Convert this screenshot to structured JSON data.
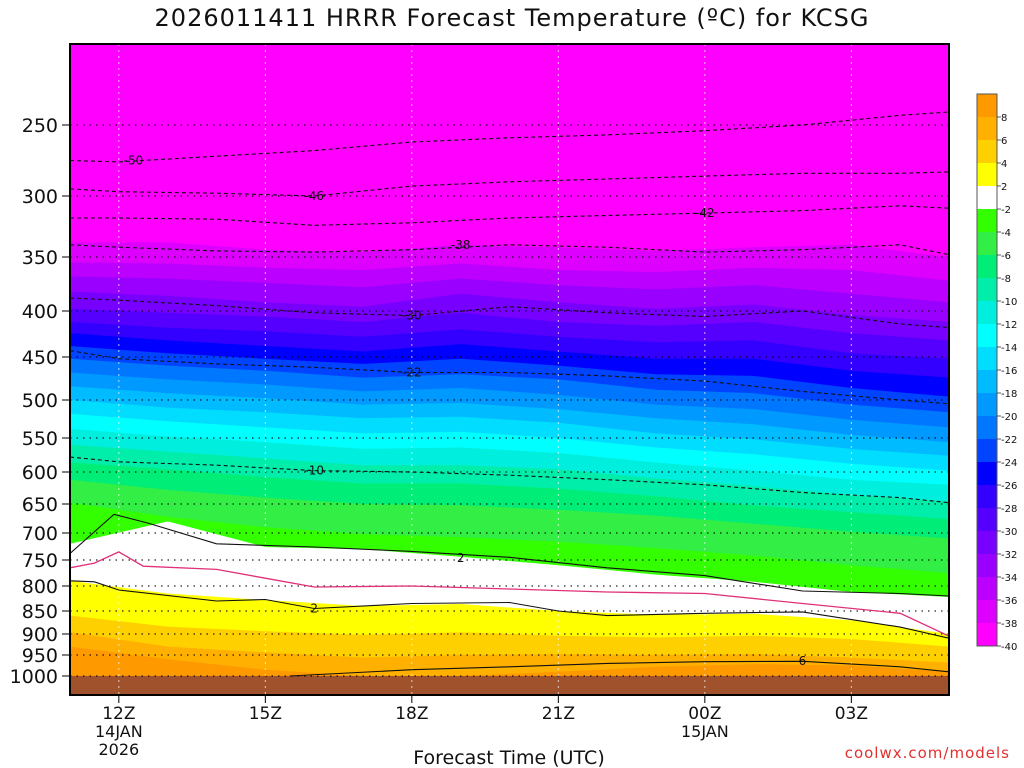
{
  "title": "2026011411 HRRR Forecast Temperature (ºC) for KCSG",
  "credit": "coolwx.com/models",
  "chart_data": {
    "type": "heatmap",
    "title": "2026011411 HRRR Forecast Temperature (ºC) for KCSG",
    "xlabel": "Forecast Time (UTC)",
    "ylabel": "",
    "x_range_hours": [
      -1,
      17
    ],
    "y_pressure_range_hpa": [
      200,
      1020
    ],
    "x_ticks": [
      {
        "hour": 0,
        "label": "12Z",
        "sub1": "14JAN",
        "sub2": "2026"
      },
      {
        "hour": 3,
        "label": "15Z",
        "sub1": "",
        "sub2": ""
      },
      {
        "hour": 6,
        "label": "18Z",
        "sub1": "",
        "sub2": ""
      },
      {
        "hour": 9,
        "label": "21Z",
        "sub1": "",
        "sub2": ""
      },
      {
        "hour": 12,
        "label": "00Z",
        "sub1": "15JAN",
        "sub2": ""
      },
      {
        "hour": 15,
        "label": "03Z",
        "sub1": "",
        "sub2": ""
      }
    ],
    "y_ticks": [
      250,
      300,
      350,
      400,
      450,
      500,
      550,
      600,
      650,
      700,
      750,
      800,
      850,
      900,
      950,
      1000
    ],
    "colorbar_levels": [
      "8",
      "6",
      "4",
      "2",
      "-2",
      "-4",
      "-6",
      "-8",
      "-10",
      "-12",
      "-14",
      "-16",
      "-18",
      "-20",
      "-22",
      "-24",
      "-26",
      "-28",
      "-30",
      "-32",
      "-34",
      "-36",
      "-38",
      "-40"
    ],
    "colorbar_colors": [
      "#ff9900",
      "#ffb000",
      "#ffd000",
      "#ffff00",
      "#ffffff",
      "#33ff00",
      "#33ee44",
      "#00ee77",
      "#00eeaa",
      "#00eedd",
      "#00ffff",
      "#00ddff",
      "#00bbff",
      "#0099ff",
      "#0077ff",
      "#0044ff",
      "#0000ff",
      "#3300ff",
      "#5500ff",
      "#7700ff",
      "#9900ff",
      "#bb00ff",
      "#dd00ff",
      "#ff00ff"
    ],
    "ground_color": "#a0522d",
    "contours": [
      {
        "label": "-50",
        "label_pos": [
          0.3,
          275
        ],
        "points": [
          [
            -1,
            275
          ],
          [
            0,
            276
          ],
          [
            2,
            272
          ],
          [
            4,
            268
          ],
          [
            6,
            262
          ],
          [
            8,
            259
          ],
          [
            10,
            257
          ],
          [
            12,
            254
          ],
          [
            14,
            250
          ],
          [
            16,
            244
          ],
          [
            17,
            242
          ]
        ]
      },
      {
        "label": "-46",
        "label_pos": [
          4,
          300
        ],
        "points": [
          [
            -1,
            295
          ],
          [
            0,
            297
          ],
          [
            2,
            298
          ],
          [
            4,
            300
          ],
          [
            6,
            293
          ],
          [
            8,
            290
          ],
          [
            10,
            288
          ],
          [
            12,
            286
          ],
          [
            14,
            284
          ],
          [
            16,
            284
          ],
          [
            17,
            283
          ]
        ]
      },
      {
        "label": "-42",
        "label_pos": [
          12,
          314
        ],
        "points": [
          [
            -1,
            318
          ],
          [
            0,
            318
          ],
          [
            2,
            319
          ],
          [
            4,
            324
          ],
          [
            6,
            322
          ],
          [
            8,
            318
          ],
          [
            10,
            316
          ],
          [
            12,
            314
          ],
          [
            14,
            312
          ],
          [
            16,
            308
          ],
          [
            17,
            310
          ]
        ]
      },
      {
        "label": "-38",
        "label_pos": [
          7,
          340
        ],
        "points": [
          [
            -1,
            340
          ],
          [
            0,
            342
          ],
          [
            2,
            345
          ],
          [
            4,
            346
          ],
          [
            6,
            344
          ],
          [
            8,
            340
          ],
          [
            10,
            342
          ],
          [
            12,
            346
          ],
          [
            14,
            344
          ],
          [
            16,
            340
          ],
          [
            17,
            348
          ]
        ]
      },
      {
        "label": "-30",
        "label_pos": [
          6,
          405
        ],
        "points": [
          [
            -1,
            388
          ],
          [
            0,
            390
          ],
          [
            2,
            395
          ],
          [
            4,
            402
          ],
          [
            6,
            405
          ],
          [
            8,
            396
          ],
          [
            10,
            402
          ],
          [
            12,
            406
          ],
          [
            14,
            400
          ],
          [
            16,
            414
          ],
          [
            17,
            418
          ]
        ]
      },
      {
        "label": "-22",
        "label_pos": [
          6,
          468
        ],
        "points": [
          [
            -1,
            443
          ],
          [
            0,
            452
          ],
          [
            2,
            458
          ],
          [
            4,
            462
          ],
          [
            6,
            468
          ],
          [
            8,
            468
          ],
          [
            10,
            472
          ],
          [
            12,
            478
          ],
          [
            14,
            490
          ],
          [
            16,
            500
          ],
          [
            17,
            505
          ]
        ]
      },
      {
        "label": "-10",
        "label_pos": [
          4,
          598
        ],
        "points": [
          [
            -1,
            578
          ],
          [
            0,
            585
          ],
          [
            2,
            590
          ],
          [
            4,
            598
          ],
          [
            6,
            600
          ],
          [
            8,
            605
          ],
          [
            10,
            612
          ],
          [
            12,
            620
          ],
          [
            14,
            632
          ],
          [
            16,
            640
          ],
          [
            17,
            648
          ]
        ]
      },
      {
        "label": "2",
        "label_pos": [
          7,
          746
        ],
        "points": [
          [
            -1,
            738
          ],
          [
            -0.1,
            668
          ],
          [
            0.6,
            683
          ],
          [
            2,
            720
          ],
          [
            4,
            726
          ],
          [
            6,
            734
          ],
          [
            8,
            745
          ],
          [
            10,
            765
          ],
          [
            12,
            780
          ],
          [
            14,
            810
          ],
          [
            16,
            815
          ],
          [
            17,
            820
          ]
        ]
      },
      {
        "label": "2",
        "label_pos": [
          4,
          845
        ],
        "points": [
          [
            -1,
            790
          ],
          [
            -0.5,
            792
          ],
          [
            0,
            808
          ],
          [
            2,
            830
          ],
          [
            3,
            827
          ],
          [
            4,
            845
          ],
          [
            6,
            835
          ],
          [
            8,
            833
          ],
          [
            9,
            850
          ],
          [
            10,
            860
          ],
          [
            12,
            855
          ],
          [
            14,
            852
          ],
          [
            16,
            885
          ],
          [
            17,
            910
          ]
        ]
      },
      {
        "label": "6",
        "label_pos": [
          14,
          964
        ],
        "points": [
          [
            3.5,
            1000
          ],
          [
            6,
            985
          ],
          [
            8,
            978
          ],
          [
            10,
            970
          ],
          [
            12,
            966
          ],
          [
            14,
            965
          ],
          [
            16,
            978
          ],
          [
            17,
            990
          ]
        ]
      }
    ],
    "freezing_line": {
      "points": [
        [
          -1,
          765
        ],
        [
          -0.5,
          756
        ],
        [
          0,
          735
        ],
        [
          0.5,
          762
        ],
        [
          2,
          768
        ],
        [
          3,
          785
        ],
        [
          4,
          802
        ],
        [
          6,
          800
        ],
        [
          8,
          806
        ],
        [
          10,
          812
        ],
        [
          12,
          815
        ],
        [
          14,
          835
        ],
        [
          16,
          855
        ],
        [
          17,
          905
        ]
      ]
    },
    "warm_band_temp_c": {
      "surface_max": 8,
      "ridge_850": 0
    }
  }
}
